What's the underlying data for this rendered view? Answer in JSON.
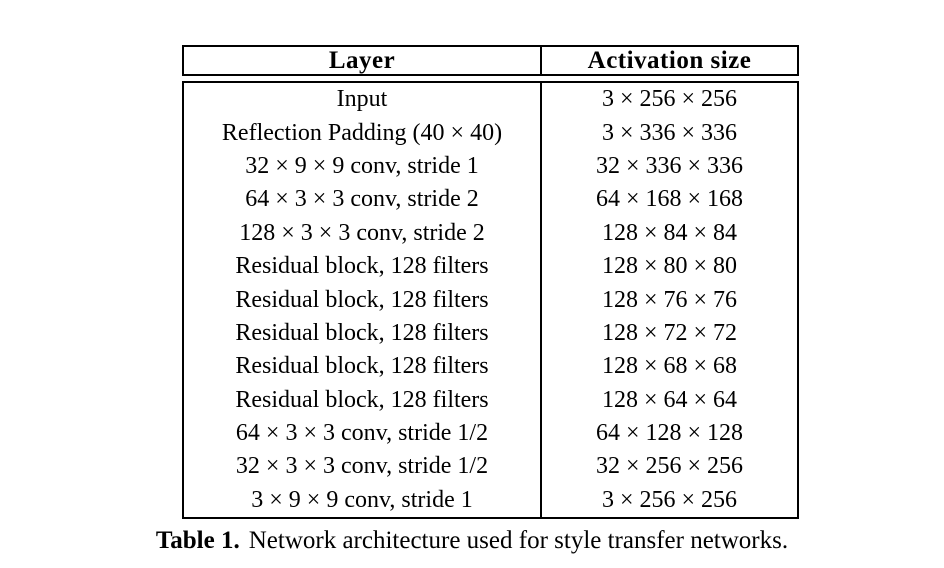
{
  "table": {
    "headers": [
      "Layer",
      "Activation size"
    ],
    "rows": [
      [
        "Input",
        "3 × 256 × 256"
      ],
      [
        "Reflection Padding (40 × 40)",
        "3 × 336 × 336"
      ],
      [
        "32 × 9 × 9 conv, stride 1",
        "32 × 336 × 336"
      ],
      [
        "64 × 3 × 3 conv, stride 2",
        "64 × 168 × 168"
      ],
      [
        "128 × 3 × 3 conv, stride 2",
        "128 × 84 × 84"
      ],
      [
        "Residual block, 128 filters",
        "128 × 80 × 80"
      ],
      [
        "Residual block, 128 filters",
        "128 × 76 × 76"
      ],
      [
        "Residual block, 128 filters",
        "128 × 72 × 72"
      ],
      [
        "Residual block, 128 filters",
        "128 × 68 × 68"
      ],
      [
        "Residual block, 128 filters",
        "128 × 64 × 64"
      ],
      [
        "64 × 3 × 3 conv, stride 1/2",
        "64 × 128 × 128"
      ],
      [
        "32 × 3 × 3 conv, stride 1/2",
        "32 × 256 × 256"
      ],
      [
        "3 × 9 × 9 conv, stride 1",
        "3 × 256 × 256"
      ]
    ]
  },
  "caption": {
    "label": "Table 1.",
    "text": "Network architecture used for style transfer networks."
  },
  "colors": {
    "text": "#000000",
    "background": "#ffffff",
    "border": "#000000"
  }
}
